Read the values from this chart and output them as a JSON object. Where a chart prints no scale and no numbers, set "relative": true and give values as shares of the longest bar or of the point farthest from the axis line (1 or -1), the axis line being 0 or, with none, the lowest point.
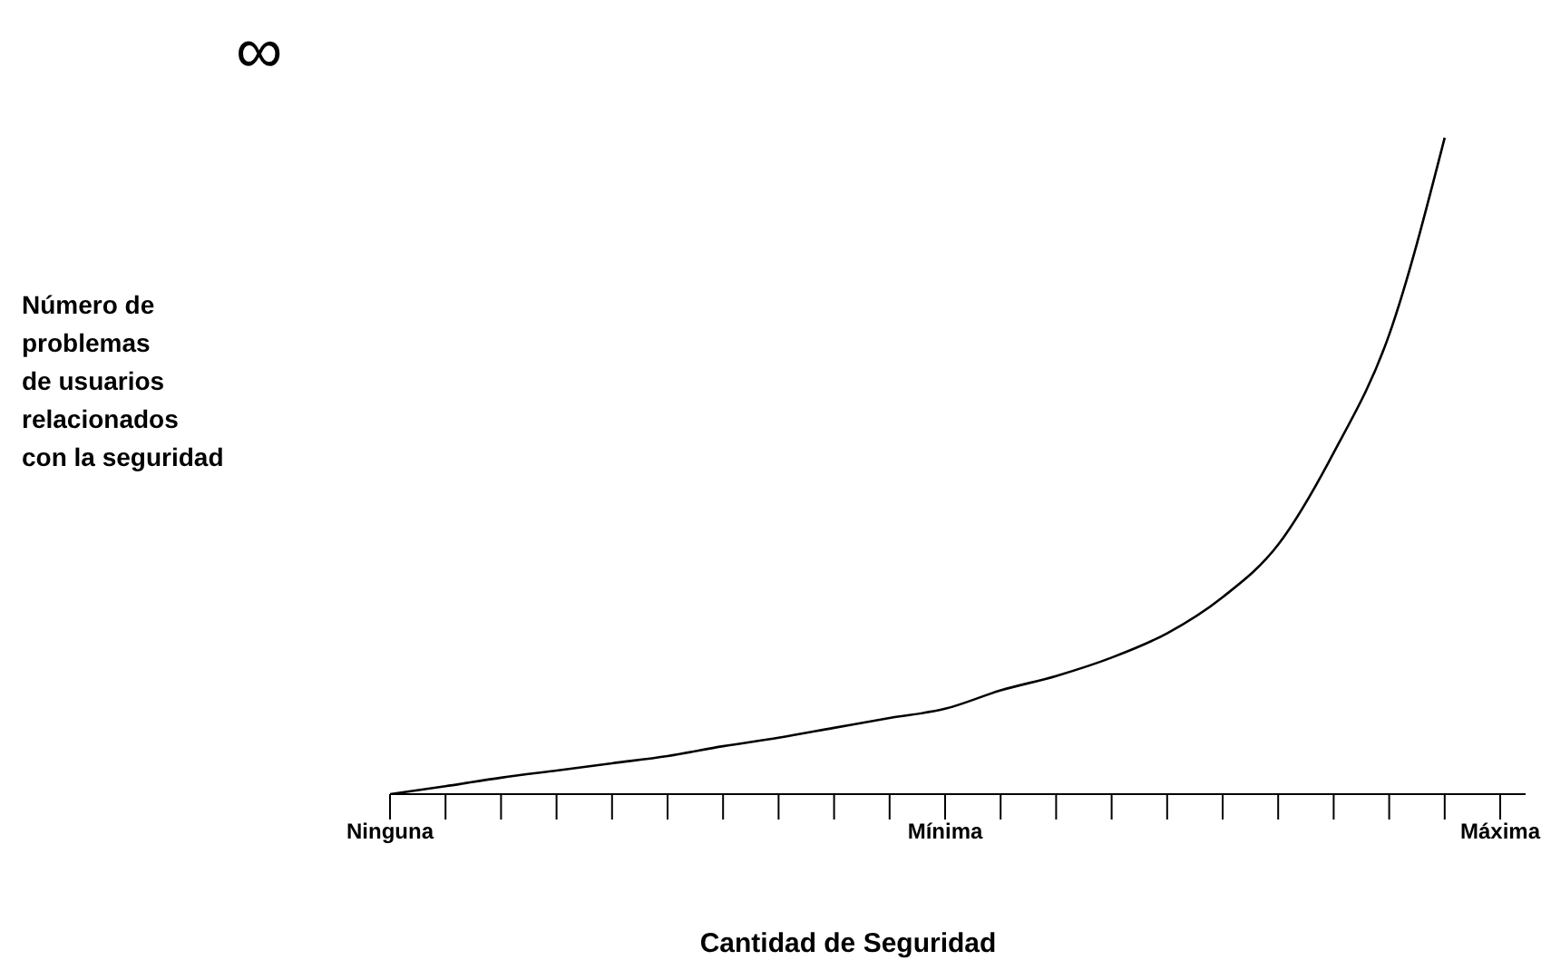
{
  "chart_data": {
    "type": "line",
    "relative": true,
    "xlabel": "Cantidad de Seguridad",
    "ylabel": "Número de\nproblemas\nde usuarios\nrelacionados\ncon la seguridad",
    "annotations": [
      "∞"
    ],
    "marker": "none",
    "line_style": "solid",
    "categories": [
      "Ninguna",
      null,
      null,
      null,
      null,
      null,
      null,
      null,
      null,
      null,
      "Mínima",
      null,
      null,
      null,
      null,
      null,
      null,
      null,
      null,
      null,
      "Máxima"
    ],
    "series": [
      {
        "color": "#000000",
        "values": [
          0,
          0.012,
          0.025,
          0.036,
          0.047,
          0.058,
          0.073,
          0.086,
          0.101,
          0.116,
          0.13,
          0.158,
          0.18,
          0.208,
          0.245,
          0.3,
          0.38,
          0.52,
          0.7,
          1,
          null
        ]
      }
    ]
  }
}
